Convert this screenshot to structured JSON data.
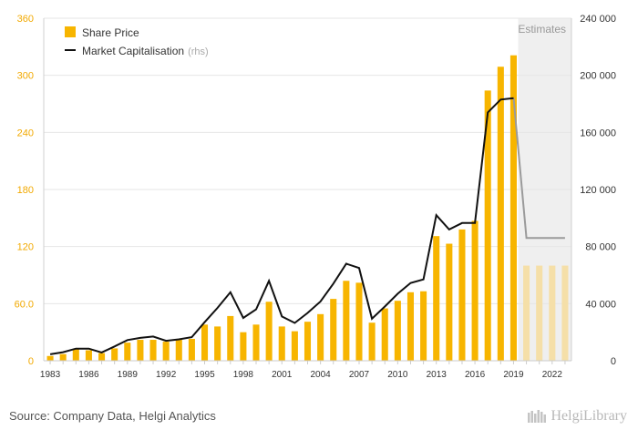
{
  "source_text": "Source: Company Data, Helgi Analytics",
  "brand_text": "HelgiLibrary",
  "chart_data": {
    "type": "bar",
    "title": "",
    "xlabel": "",
    "ylabel": "",
    "legend_position": "top-left",
    "estimates_label": "Estimates",
    "estimates_from": 2020,
    "grid": true,
    "colors": {
      "bar": "#F7B500",
      "bar_estimate": "#F5DFA8",
      "line": "#111111",
      "line_estimate": "#9a9a9a",
      "estimates_bg": "#EFEFEF",
      "left_axis": "#F2A900",
      "grid": "#e6e6e6"
    },
    "x": [
      1983,
      1984,
      1985,
      1986,
      1987,
      1988,
      1989,
      1990,
      1991,
      1992,
      1993,
      1994,
      1995,
      1996,
      1997,
      1998,
      1999,
      2000,
      2001,
      2002,
      2003,
      2004,
      2005,
      2006,
      2007,
      2008,
      2009,
      2010,
      2011,
      2012,
      2013,
      2014,
      2015,
      2016,
      2017,
      2018,
      2019,
      2020,
      2021,
      2022,
      2023
    ],
    "x_tick_labels": [
      "1983",
      "1986",
      "1989",
      "1992",
      "1995",
      "1998",
      "2001",
      "2004",
      "2007",
      "2010",
      "2013",
      "2016",
      "2019",
      "2022"
    ],
    "y_left": {
      "ylim": [
        0,
        360
      ],
      "ticks": [
        "0",
        "60.0",
        "120",
        "180",
        "240",
        "300",
        "360"
      ]
    },
    "y_right": {
      "ylim": [
        0,
        240000
      ],
      "ticks": [
        "0",
        "40 000",
        "80 000",
        "120 000",
        "160 000",
        "200 000",
        "240 000"
      ]
    },
    "series": [
      {
        "name": "Share Price",
        "kind": "bar",
        "axis": "left",
        "values": [
          5,
          7,
          12,
          11,
          8,
          13,
          19,
          22,
          22,
          20,
          22,
          23,
          38,
          36,
          47,
          30,
          38,
          62,
          36,
          31,
          41,
          49,
          65,
          84,
          82,
          40,
          55,
          63,
          72,
          73,
          131,
          123,
          138,
          147,
          284,
          309,
          321,
          100,
          100,
          100,
          100
        ]
      },
      {
        "name": "Market Capitalisation",
        "legend_note": "(rhs)",
        "kind": "line",
        "axis": "right",
        "values": [
          4500,
          6000,
          8500,
          8500,
          5800,
          10000,
          14500,
          16000,
          17000,
          14000,
          15000,
          16500,
          27000,
          37000,
          48000,
          30000,
          36000,
          56000,
          31000,
          26500,
          33500,
          41500,
          54000,
          68000,
          65000,
          29500,
          38000,
          47000,
          54500,
          57000,
          102000,
          92000,
          96500,
          96500,
          174000,
          183000,
          184000,
          86000,
          86000,
          86000,
          86000
        ]
      }
    ]
  }
}
